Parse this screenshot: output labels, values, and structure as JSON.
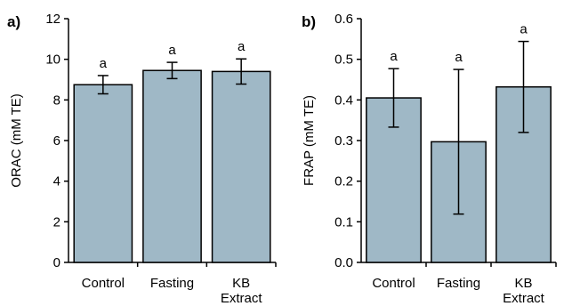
{
  "chart_data": [
    {
      "type": "bar",
      "panel_label": "a)",
      "ylabel": "ORAC (mM TE)",
      "xlabel": "",
      "categories": [
        "Control",
        "Fasting",
        "KB Extract"
      ],
      "category_lines": [
        [
          "Control"
        ],
        [
          "Fasting"
        ],
        [
          "KB",
          "Extract"
        ]
      ],
      "values": [
        8.75,
        9.45,
        9.4
      ],
      "error": [
        0.45,
        0.4,
        0.62
      ],
      "annotations": [
        "a",
        "a",
        "a"
      ],
      "ylim": [
        0,
        12
      ],
      "yticks": [
        0,
        2,
        4,
        6,
        8,
        10,
        12
      ],
      "yticklabels": [
        "0",
        "2",
        "4",
        "6",
        "8",
        "10",
        "12"
      ],
      "bar_color": "#9fb8c6",
      "grid": false
    },
    {
      "type": "bar",
      "panel_label": "b)",
      "ylabel": "FRAP (mM TE)",
      "xlabel": "",
      "categories": [
        "Control",
        "Fasting",
        "KB Extract"
      ],
      "category_lines": [
        [
          "Control"
        ],
        [
          "Fasting"
        ],
        [
          "KB",
          "Extract"
        ]
      ],
      "values": [
        0.405,
        0.297,
        0.432
      ],
      "error": [
        0.072,
        0.178,
        0.112
      ],
      "annotations": [
        "a",
        "a",
        "a"
      ],
      "ylim": [
        0,
        0.6
      ],
      "yticks": [
        0,
        0.1,
        0.2,
        0.3,
        0.4,
        0.5,
        0.6
      ],
      "yticklabels": [
        "0.0",
        "0.1",
        "0.2",
        "0.3",
        "0.4",
        "0.5",
        "0.6"
      ],
      "bar_color": "#9fb8c6",
      "grid": false
    }
  ]
}
